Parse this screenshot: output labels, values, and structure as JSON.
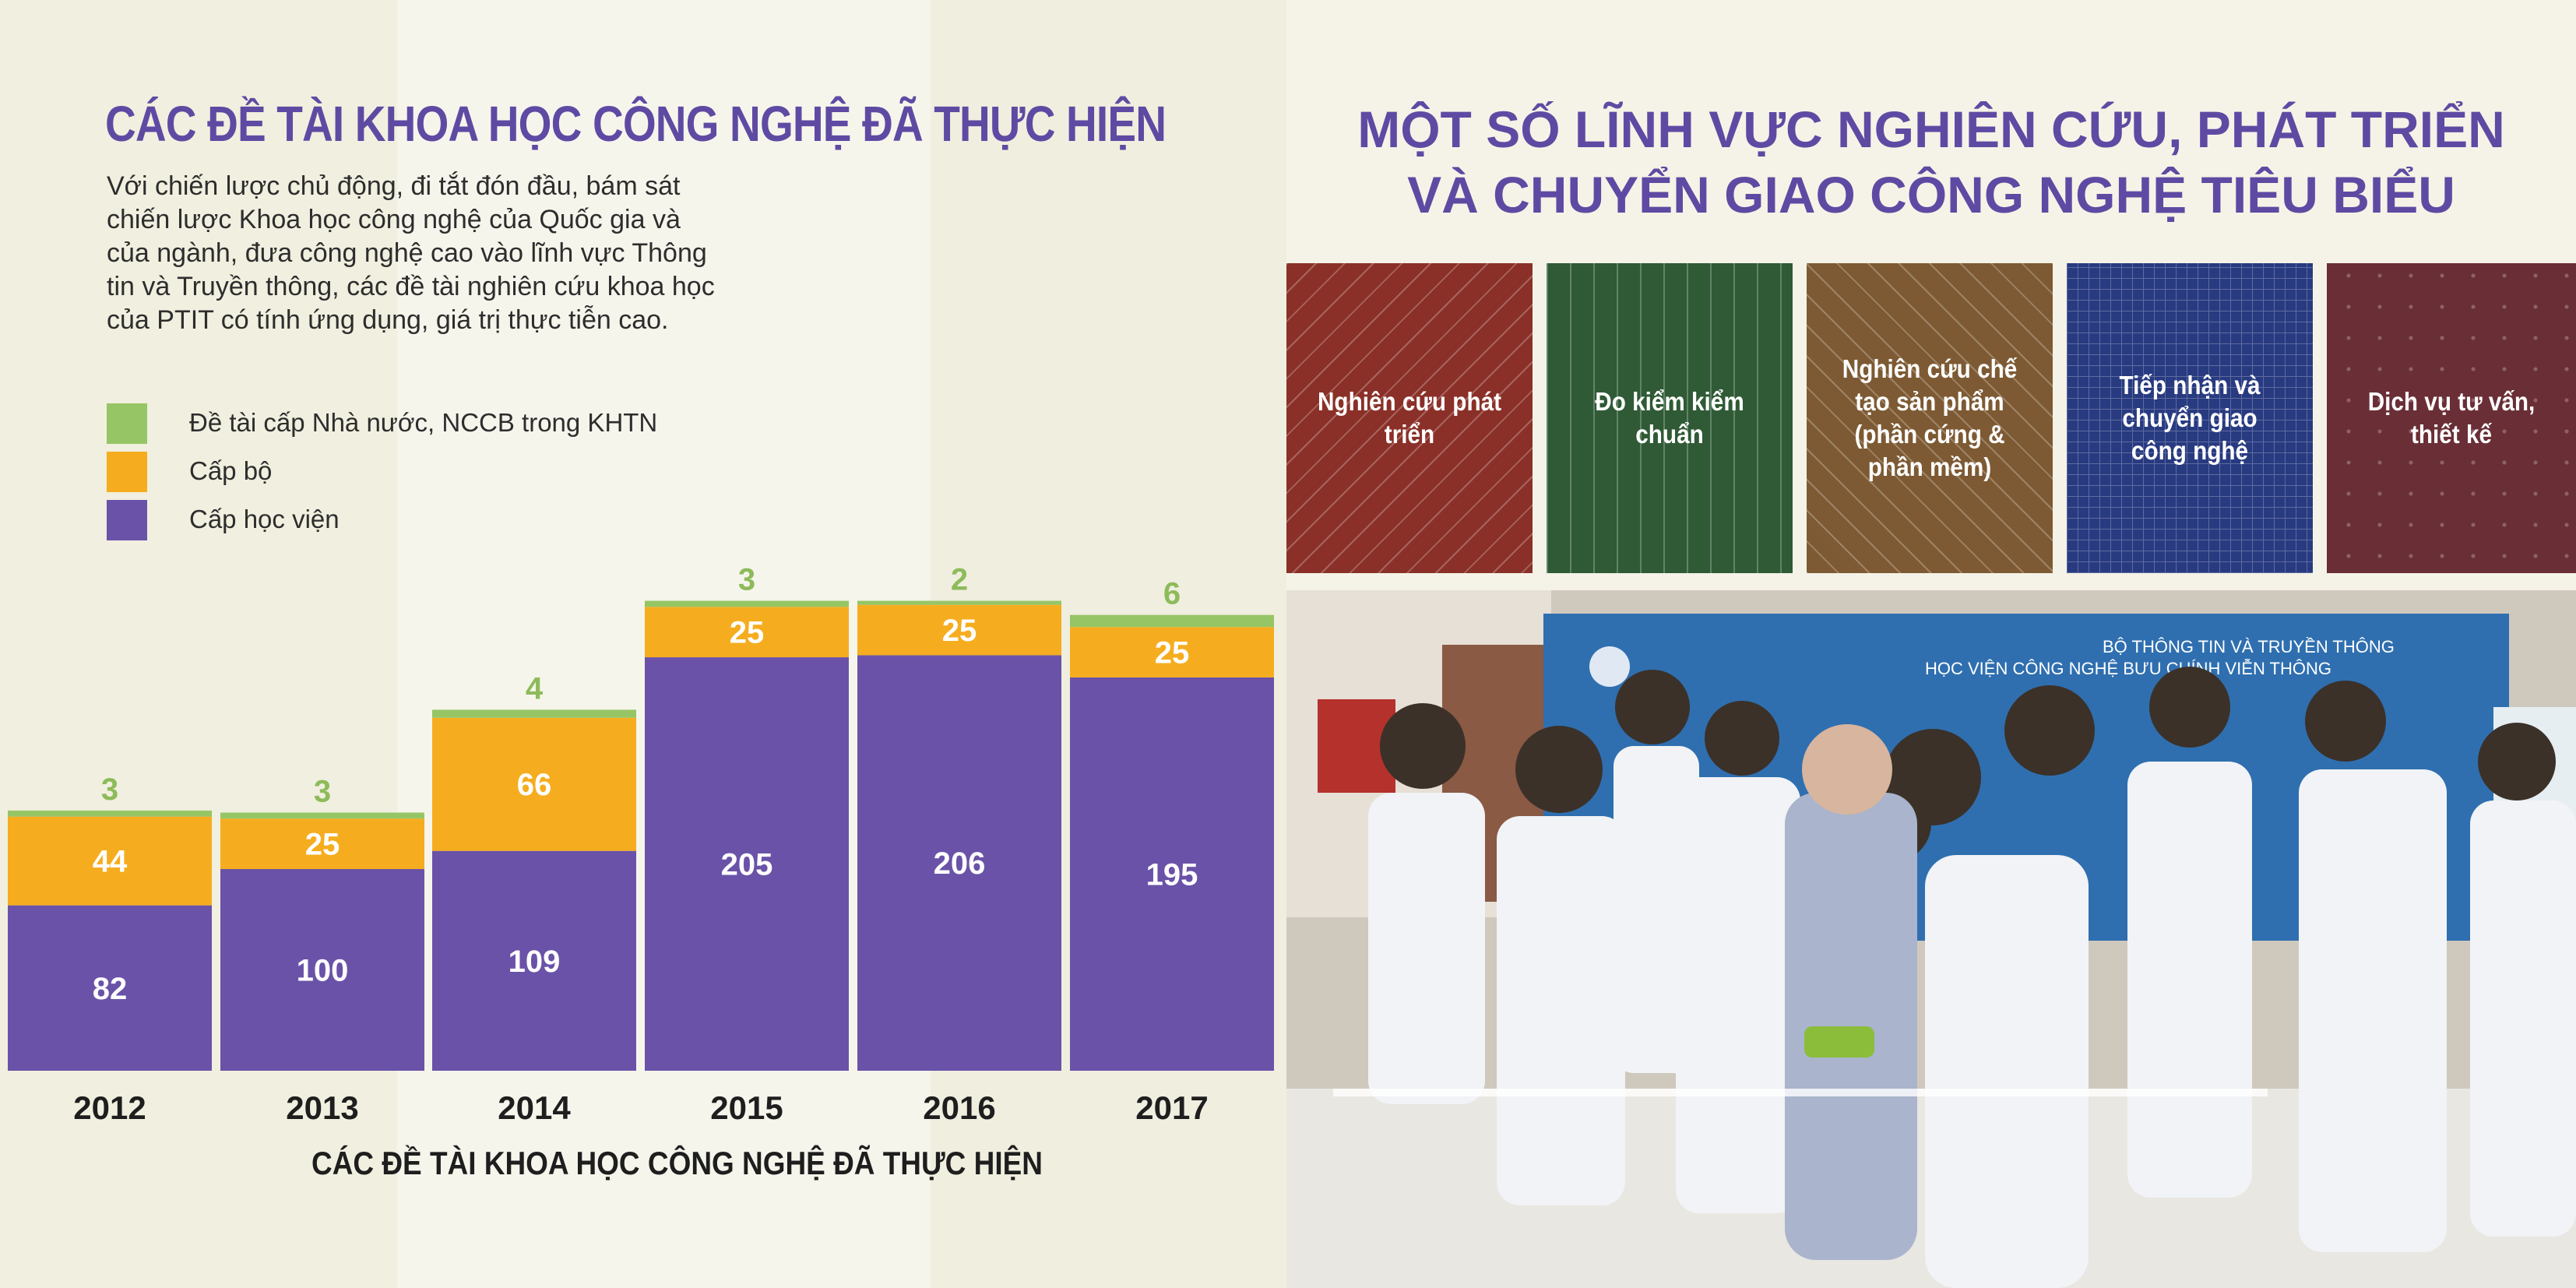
{
  "left": {
    "title": "CÁC ĐỀ TÀI KHOA HỌC CÔNG NGHỆ ĐÃ THỰC HIỆN",
    "intro_lines": [
      "Với chiến lược chủ động, đi tắt đón đầu, bám sát",
      "chiến lược Khoa học công nghệ của Quốc gia và",
      "của ngành, đưa công nghệ cao vào lĩnh vực Thông",
      "tin và Truyền thông, các đề tài nghiên cứu khoa học",
      "của PTIT có tính ứng dụng, giá trị thực tiễn cao."
    ],
    "caption": "CÁC ĐỀ TÀI KHOA HỌC CÔNG NGHỆ ĐÃ THỰC HIỆN"
  },
  "chart_data": {
    "type": "bar",
    "stacked": true,
    "categories": [
      "2012",
      "2013",
      "2014",
      "2015",
      "2016",
      "2017"
    ],
    "series": [
      {
        "name": "Cấp học viện",
        "color": "#6a52a8",
        "values": [
          82,
          100,
          109,
          205,
          206,
          195
        ]
      },
      {
        "name": "Cấp bộ",
        "color": "#f5ad1f",
        "values": [
          44,
          25,
          66,
          25,
          25,
          25
        ]
      },
      {
        "name": "Đề tài cấp Nhà nước, NCCB trong KHTN",
        "color": "#96c565",
        "values": [
          3,
          3,
          4,
          3,
          2,
          6
        ]
      }
    ],
    "legend_order": [
      "Đề tài cấp Nhà nước, NCCB trong KHTN",
      "Cấp bộ",
      "Cấp học viện"
    ],
    "legend": "top-left",
    "title": "",
    "xlabel": "",
    "ylabel": "",
    "grid": false
  },
  "right": {
    "title_lines": [
      "MỘT SỐ LĨNH VỰC NGHIÊN CỨU, PHÁT TRIỂN",
      "VÀ CHUYỂN GIAO CÔNG NGHỆ TIÊU BIỂU"
    ],
    "tiles": [
      {
        "label": "Nghiên cứu phát triển",
        "color": "#8a3028"
      },
      {
        "label": "Đo kiểm kiểm chuẩn",
        "color": "#2f5a35"
      },
      {
        "label": "Nghiên cứu chế tạo sản phẩm (phần cứng & phần mềm)",
        "color": "#7d5a33"
      },
      {
        "label": "Tiếp nhận và chuyển giao công nghệ",
        "color": "#283a80"
      },
      {
        "label": "Dịch vụ tư vấn, thiết kế",
        "color": "#6a2e36"
      }
    ],
    "photo_banner": [
      "BỘ THÔNG TIN VÀ TRUYỀN THÔNG",
      "HỌC VIỆN CÔNG NGHỆ BƯU CHÍNH VIỄN THÔNG"
    ]
  }
}
